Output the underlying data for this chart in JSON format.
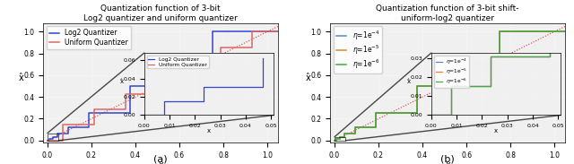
{
  "fig_width": 6.4,
  "fig_height": 1.83,
  "dpi": 100,
  "title_a": "Quantization function of 3-bit\nLog2 quantizer and uniform quantizer",
  "title_b": "Quantization function of 3-bit shift-\nuniform-log2 quantizer",
  "xlabel": "x",
  "ylabel": "x̂",
  "label_a": "(a)",
  "label_b": "(b)",
  "log2_color": "#3344cc",
  "uniform_color": "#dd6666",
  "eta4_color": "#5588cc",
  "eta5_color": "#dd8833",
  "eta6_color": "#44aa44",
  "identity_color": "#ee3333",
  "bg_color": "#f0f0f0"
}
